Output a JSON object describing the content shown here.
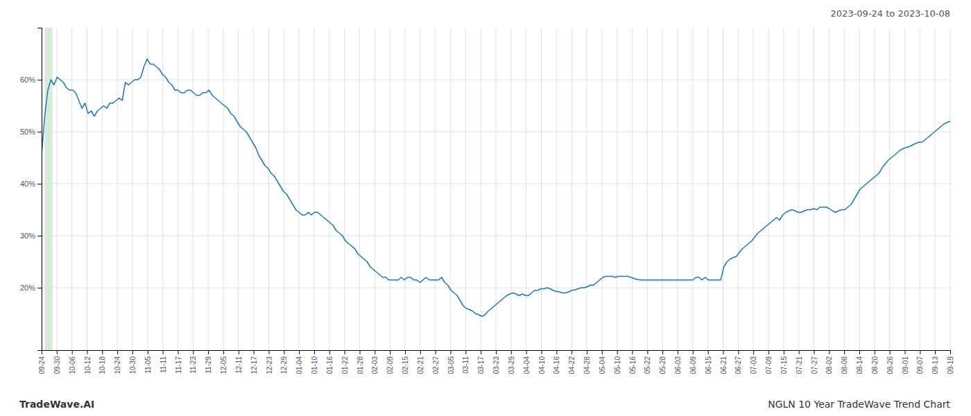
{
  "chart_data": {
    "type": "line",
    "title": "NGLN 10 Year TradeWave Trend Chart",
    "subtitle": "2023-09-24 to 2023-10-08",
    "annotations": [
      "TradeWave.AI"
    ],
    "color": "#1f77b4",
    "grid": true,
    "highlight_x": [
      1,
      3.5
    ],
    "highlight_color": "#d6ecd6",
    "ylim": [
      0.08,
      0.7
    ],
    "yticks": [
      {
        "value": 0.2,
        "label": "20%"
      },
      {
        "value": 0.3,
        "label": "30%"
      },
      {
        "value": 0.4,
        "label": "40%"
      },
      {
        "value": 0.5,
        "label": "50%"
      },
      {
        "value": 0.6,
        "label": "60%"
      }
    ],
    "xlim": [
      0,
      293
    ],
    "xticks": [
      {
        "value": 0,
        "label": "09-24"
      },
      {
        "value": 4.883333333333334,
        "label": "09-30"
      },
      {
        "value": 9.766666666666667,
        "label": "10-06"
      },
      {
        "value": 14.65,
        "label": "10-12"
      },
      {
        "value": 19.533333333333335,
        "label": "10-18"
      },
      {
        "value": 24.416666666666668,
        "label": "10-24"
      },
      {
        "value": 29.3,
        "label": "10-30"
      },
      {
        "value": 34.18333333333333,
        "label": "11-05"
      },
      {
        "value": 39.06666666666667,
        "label": "11-11"
      },
      {
        "value": 43.95,
        "label": "11-17"
      },
      {
        "value": 48.833333333333336,
        "label": "11-23"
      },
      {
        "value": 53.71666666666667,
        "label": "11-29"
      },
      {
        "value": 58.6,
        "label": "12-05"
      },
      {
        "value": 63.483333333333334,
        "label": "12-11"
      },
      {
        "value": 68.36666666666666,
        "label": "12-17"
      },
      {
        "value": 73.25,
        "label": "12-23"
      },
      {
        "value": 78.13333333333334,
        "label": "12-29"
      },
      {
        "value": 83.01666666666667,
        "label": "01-04"
      },
      {
        "value": 87.9,
        "label": "01-10"
      },
      {
        "value": 92.78333333333333,
        "label": "01-16"
      },
      {
        "value": 97.66666666666667,
        "label": "01-22"
      },
      {
        "value": 102.55,
        "label": "01-28"
      },
      {
        "value": 107.43333333333334,
        "label": "02-03"
      },
      {
        "value": 112.31666666666666,
        "label": "02-09"
      },
      {
        "value": 117.2,
        "label": "02-15"
      },
      {
        "value": 122.08333333333333,
        "label": "02-21"
      },
      {
        "value": 126.96666666666667,
        "label": "02-27"
      },
      {
        "value": 131.85,
        "label": "03-05"
      },
      {
        "value": 136.73333333333332,
        "label": "03-11"
      },
      {
        "value": 141.61666666666667,
        "label": "03-17"
      },
      {
        "value": 146.5,
        "label": "03-23"
      },
      {
        "value": 151.38333333333333,
        "label": "03-29"
      },
      {
        "value": 156.26666666666668,
        "label": "04-04"
      },
      {
        "value": 161.15,
        "label": "04-10"
      },
      {
        "value": 166.03333333333333,
        "label": "04-16"
      },
      {
        "value": 170.91666666666666,
        "label": "04-22"
      },
      {
        "value": 175.8,
        "label": "04-28"
      },
      {
        "value": 180.68333333333334,
        "label": "05-04"
      },
      {
        "value": 185.56666666666666,
        "label": "05-10"
      },
      {
        "value": 190.45,
        "label": "05-16"
      },
      {
        "value": 195.33333333333334,
        "label": "05-22"
      },
      {
        "value": 200.21666666666667,
        "label": "05-28"
      },
      {
        "value": 205.1,
        "label": "06-03"
      },
      {
        "value": 209.98333333333332,
        "label": "06-09"
      },
      {
        "value": 214.86666666666667,
        "label": "06-15"
      },
      {
        "value": 219.75,
        "label": "06-21"
      },
      {
        "value": 224.63333333333333,
        "label": "06-27"
      },
      {
        "value": 229.51666666666668,
        "label": "07-03"
      },
      {
        "value": 234.4,
        "label": "07-09"
      },
      {
        "value": 239.28333333333333,
        "label": "07-15"
      },
      {
        "value": 244.16666666666666,
        "label": "07-21"
      },
      {
        "value": 249.05,
        "label": "07-27"
      },
      {
        "value": 253.93333333333334,
        "label": "08-02"
      },
      {
        "value": 258.81666666666666,
        "label": "08-08"
      },
      {
        "value": 263.7,
        "label": "08-14"
      },
      {
        "value": 268.5833333333333,
        "label": "08-20"
      },
      {
        "value": 273.46666666666664,
        "label": "08-26"
      },
      {
        "value": 278.35,
        "label": "09-01"
      },
      {
        "value": 283.23333333333335,
        "label": "09-07"
      },
      {
        "value": 288.1166666666667,
        "label": "09-13"
      },
      {
        "value": 293,
        "label": "09-19"
      }
    ],
    "values": [
      0.455,
      0.53,
      0.58,
      0.6,
      0.59,
      0.605,
      0.6,
      0.595,
      0.585,
      0.58,
      0.58,
      0.575,
      0.56,
      0.545,
      0.555,
      0.535,
      0.54,
      0.53,
      0.54,
      0.545,
      0.55,
      0.545,
      0.555,
      0.555,
      0.56,
      0.565,
      0.56,
      0.595,
      0.59,
      0.595,
      0.6,
      0.6,
      0.605,
      0.625,
      0.64,
      0.63,
      0.63,
      0.625,
      0.62,
      0.61,
      0.605,
      0.595,
      0.59,
      0.58,
      0.58,
      0.575,
      0.575,
      0.58,
      0.58,
      0.575,
      0.57,
      0.57,
      0.575,
      0.575,
      0.58,
      0.57,
      0.565,
      0.56,
      0.555,
      0.55,
      0.545,
      0.535,
      0.53,
      0.52,
      0.51,
      0.505,
      0.5,
      0.49,
      0.48,
      0.47,
      0.455,
      0.445,
      0.435,
      0.43,
      0.42,
      0.415,
      0.405,
      0.395,
      0.385,
      0.38,
      0.37,
      0.36,
      0.35,
      0.345,
      0.34,
      0.34,
      0.345,
      0.34,
      0.345,
      0.345,
      0.34,
      0.335,
      0.33,
      0.325,
      0.32,
      0.31,
      0.305,
      0.3,
      0.29,
      0.285,
      0.28,
      0.275,
      0.265,
      0.26,
      0.255,
      0.25,
      0.24,
      0.235,
      0.23,
      0.225,
      0.22,
      0.22,
      0.215,
      0.215,
      0.215,
      0.215,
      0.22,
      0.215,
      0.22,
      0.22,
      0.215,
      0.215,
      0.21,
      0.215,
      0.22,
      0.215,
      0.215,
      0.215,
      0.215,
      0.22,
      0.21,
      0.205,
      0.195,
      0.19,
      0.185,
      0.175,
      0.165,
      0.16,
      0.158,
      0.155,
      0.15,
      0.148,
      0.145,
      0.148,
      0.155,
      0.16,
      0.165,
      0.17,
      0.175,
      0.18,
      0.185,
      0.188,
      0.19,
      0.188,
      0.185,
      0.188,
      0.185,
      0.185,
      0.19,
      0.195,
      0.195,
      0.198,
      0.198,
      0.2,
      0.198,
      0.195,
      0.193,
      0.192,
      0.19,
      0.19,
      0.192,
      0.195,
      0.196,
      0.198,
      0.2,
      0.2,
      0.202,
      0.205,
      0.205,
      0.21,
      0.215,
      0.22,
      0.222,
      0.222,
      0.222,
      0.22,
      0.222,
      0.222,
      0.222,
      0.222,
      0.22,
      0.218,
      0.216,
      0.215,
      0.215,
      0.215,
      0.215,
      0.215,
      0.215,
      0.215,
      0.215,
      0.215,
      0.215,
      0.215,
      0.215,
      0.215,
      0.215,
      0.215,
      0.215,
      0.215,
      0.215,
      0.22,
      0.22,
      0.215,
      0.22,
      0.215,
      0.215,
      0.215,
      0.215,
      0.215,
      0.24,
      0.25,
      0.255,
      0.258,
      0.26,
      0.268,
      0.275,
      0.28,
      0.285,
      0.29,
      0.298,
      0.305,
      0.31,
      0.315,
      0.32,
      0.325,
      0.33,
      0.335,
      0.33,
      0.34,
      0.345,
      0.348,
      0.35,
      0.348,
      0.345,
      0.345,
      0.348,
      0.35,
      0.35,
      0.352,
      0.35,
      0.355,
      0.355,
      0.355,
      0.352,
      0.348,
      0.345,
      0.348,
      0.35,
      0.35,
      0.355,
      0.36,
      0.37,
      0.38,
      0.39,
      0.395,
      0.4,
      0.405,
      0.41,
      0.415,
      0.42,
      0.43,
      0.438,
      0.445,
      0.45,
      0.455,
      0.46,
      0.465,
      0.468,
      0.47,
      0.472,
      0.475,
      0.478,
      0.48,
      0.48,
      0.485,
      0.49,
      0.495,
      0.5,
      0.505,
      0.51,
      0.515,
      0.518,
      0.52
    ]
  }
}
